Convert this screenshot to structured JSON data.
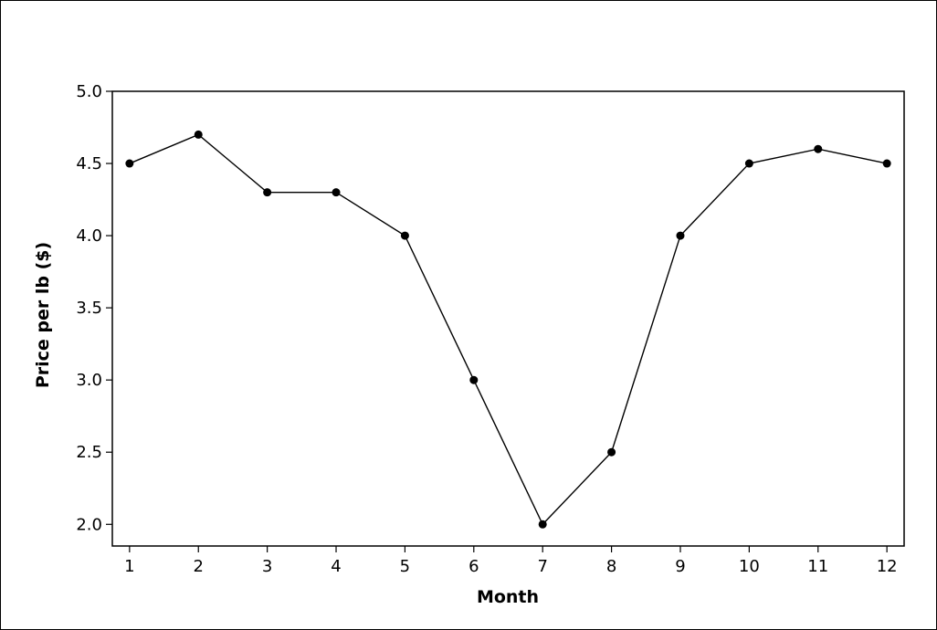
{
  "chart_data": {
    "type": "line",
    "xlabel": "Month",
    "ylabel": "Price per lb ($)",
    "x": [
      1,
      2,
      3,
      4,
      5,
      6,
      7,
      8,
      9,
      10,
      11,
      12
    ],
    "series": [
      {
        "values": [
          4.5,
          4.7,
          4.3,
          4.3,
          4.0,
          3.0,
          2.0,
          2.5,
          4.0,
          4.5,
          4.6,
          4.5
        ]
      }
    ],
    "xticks": [
      "1",
      "2",
      "3",
      "4",
      "5",
      "6",
      "7",
      "8",
      "9",
      "10",
      "11",
      "12"
    ],
    "yticks": [
      "2.0",
      "2.5",
      "3.0",
      "3.5",
      "4.0",
      "4.5",
      "5.0"
    ],
    "xlim": [
      0.75,
      12.25
    ],
    "ylim": [
      1.85,
      5.0
    ],
    "grid": false,
    "line_color": "#000000",
    "marker_color": "#000000"
  }
}
